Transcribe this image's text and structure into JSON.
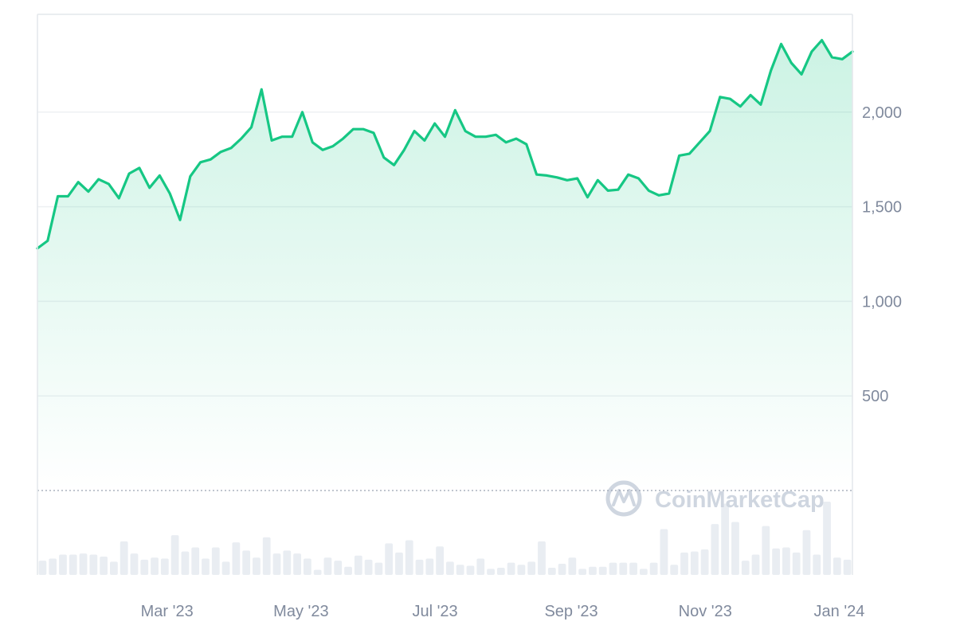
{
  "colors": {
    "line": "#16c784",
    "area_top": "#16c784",
    "grid": "#eef0f3",
    "frame": "#e4e7ec",
    "axis_text": "#808a9d",
    "volume_bar": "#e9edf2",
    "watermark": "#cfd6e0"
  },
  "watermark": {
    "text": "CoinMarketCap",
    "icon": "coinmarketcap-logo-icon"
  },
  "chart_data": {
    "type": "area",
    "title": "",
    "xlabel": "",
    "ylabel": "",
    "x_start": "2023-01-01",
    "x_end": "2024-01-07",
    "x_ticks": [
      "Mar '23",
      "May '23",
      "Jul '23",
      "Sep '23",
      "Nov '23",
      "Jan '24"
    ],
    "y_ticks": [
      "500",
      "1,000",
      "1,500",
      "2,000"
    ],
    "y_tick_values": [
      500,
      1000,
      1500,
      2000
    ],
    "ylim": [
      0,
      2500
    ],
    "grid": true,
    "series": [
      {
        "values": [
          1280,
          1320,
          1555,
          1555,
          1630,
          1580,
          1645,
          1620,
          1545,
          1675,
          1705,
          1600,
          1665,
          1570,
          1430,
          1660,
          1735,
          1750,
          1790,
          1810,
          1860,
          1920,
          2120,
          1850,
          1870,
          1870,
          2000,
          1840,
          1800,
          1820,
          1860,
          1910,
          1910,
          1890,
          1760,
          1720,
          1800,
          1900,
          1850,
          1940,
          1870,
          2010,
          1900,
          1870,
          1870,
          1880,
          1840,
          1860,
          1830,
          1670,
          1665,
          1655,
          1640,
          1650,
          1550,
          1640,
          1585,
          1590,
          1670,
          1650,
          1585,
          1560,
          1570,
          1770,
          1780,
          1840,
          1900,
          2080,
          2070,
          2030,
          2090,
          2040,
          2220,
          2360,
          2260,
          2200,
          2320,
          2380,
          2290,
          2280,
          2320
        ]
      }
    ],
    "volume": {
      "values": [
        14,
        16,
        20,
        20,
        21,
        20,
        18,
        13,
        33,
        21,
        15,
        17,
        16,
        39,
        23,
        27,
        16,
        27,
        13,
        32,
        24,
        17,
        37,
        21,
        24,
        21,
        16,
        5,
        17,
        14,
        8,
        19,
        15,
        12,
        31,
        22,
        34,
        15,
        16,
        28,
        13,
        10,
        9,
        16,
        6,
        7,
        12,
        10,
        13,
        33,
        7,
        11,
        17,
        6,
        8,
        8,
        12,
        12,
        12,
        6,
        12,
        45,
        10,
        22,
        23,
        25,
        50,
        70,
        52,
        14,
        20,
        48,
        26,
        27,
        22,
        44,
        20,
        72,
        17,
        15
      ]
    }
  }
}
